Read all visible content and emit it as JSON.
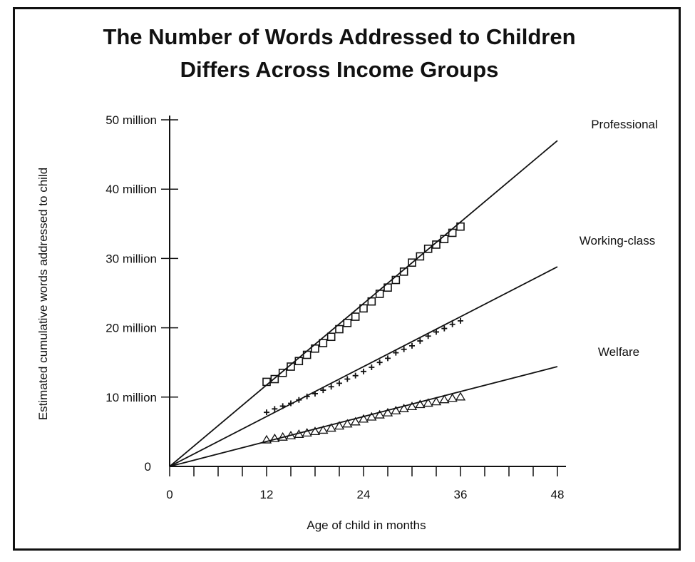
{
  "chart_data": {
    "type": "scatter",
    "title_lines": [
      "The Number of Words Addressed to Children",
      "Differs Across Income Groups"
    ],
    "xlabel": "Age of child in months",
    "ylabel": "Estimated cumulative words addressed to child",
    "xlim": [
      0,
      48
    ],
    "ylim": [
      0,
      50
    ],
    "x_ticks": [
      0,
      12,
      24,
      36,
      48
    ],
    "x_tick_labels": [
      "0",
      "12",
      "24",
      "36",
      "48"
    ],
    "y_ticks": [
      0,
      10,
      20,
      30,
      40,
      50
    ],
    "y_tick_labels": [
      "0",
      "10 million",
      "20 million",
      "30 million",
      "40 million",
      "50 million"
    ],
    "grid": false,
    "series": [
      {
        "name": "Professional",
        "marker": "square",
        "x": [
          12,
          13,
          14,
          15,
          16,
          17,
          18,
          19,
          20,
          21,
          22,
          23,
          24,
          25,
          26,
          27,
          28,
          29,
          30,
          31,
          32,
          33,
          34,
          35,
          36
        ],
        "y": [
          12.2,
          12.6,
          13.5,
          14.4,
          15.2,
          16.1,
          17.0,
          17.8,
          18.7,
          19.8,
          20.7,
          21.6,
          22.8,
          23.8,
          24.9,
          25.8,
          26.9,
          28.1,
          29.4,
          30.3,
          31.4,
          32.0,
          32.8,
          33.7,
          34.6
        ],
        "fit_line": [
          [
            0,
            0
          ],
          [
            48,
            47
          ]
        ]
      },
      {
        "name": "Working-class",
        "marker": "plus",
        "x": [
          12,
          13,
          14,
          15,
          16,
          17,
          18,
          19,
          20,
          21,
          22,
          23,
          24,
          25,
          26,
          27,
          28,
          29,
          30,
          31,
          32,
          33,
          34,
          35,
          36
        ],
        "y": [
          7.8,
          8.3,
          8.7,
          9.1,
          9.6,
          10.1,
          10.5,
          11.0,
          11.5,
          12.0,
          12.6,
          13.1,
          13.7,
          14.3,
          15.0,
          15.6,
          16.4,
          16.9,
          17.4,
          18.1,
          18.8,
          19.4,
          19.9,
          20.5,
          21.0
        ],
        "fit_line": [
          [
            0,
            0
          ],
          [
            48,
            28.8
          ]
        ]
      },
      {
        "name": "Welfare",
        "marker": "triangle",
        "x": [
          12,
          13,
          14,
          15,
          16,
          17,
          18,
          19,
          20,
          21,
          22,
          23,
          24,
          25,
          26,
          27,
          28,
          29,
          30,
          31,
          32,
          33,
          34,
          35,
          36
        ],
        "y": [
          3.8,
          4.0,
          4.2,
          4.4,
          4.6,
          4.8,
          5.0,
          5.2,
          5.5,
          5.8,
          6.1,
          6.4,
          6.8,
          7.1,
          7.4,
          7.7,
          8.0,
          8.3,
          8.6,
          8.9,
          9.1,
          9.3,
          9.6,
          9.8,
          10.0
        ],
        "fit_line": [
          [
            0,
            0
          ],
          [
            48,
            14.4
          ]
        ]
      }
    ]
  }
}
